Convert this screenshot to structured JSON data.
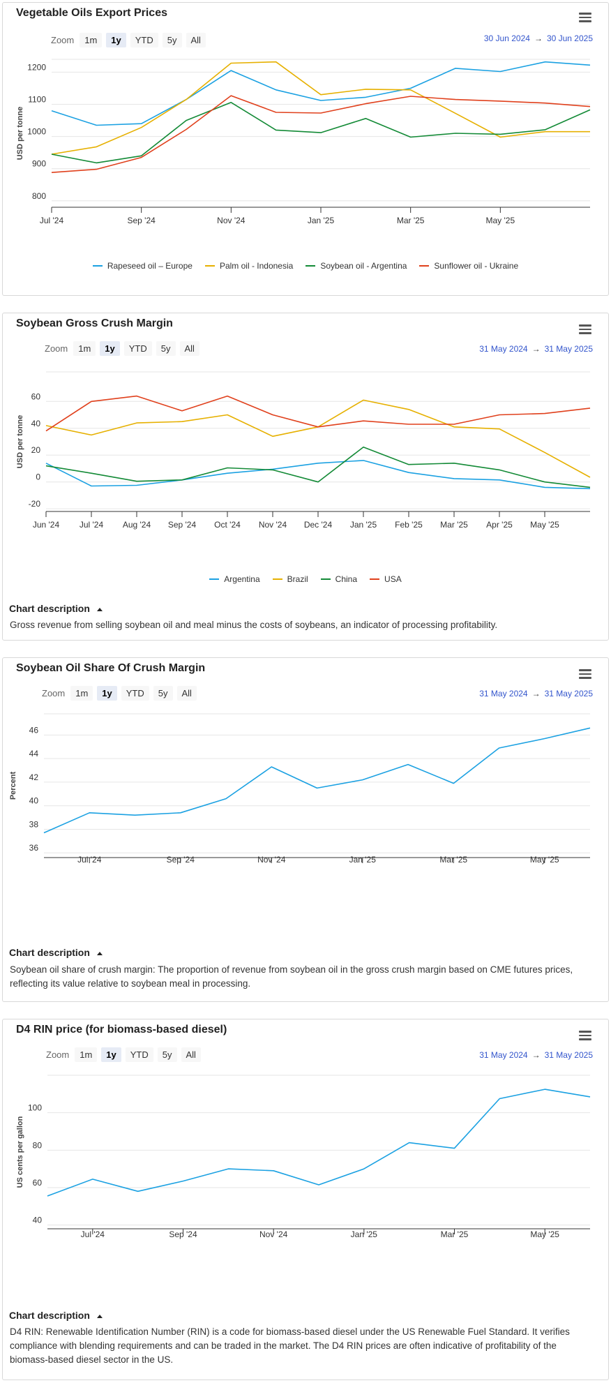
{
  "zoom_label": "Zoom",
  "zoom_options": [
    "1m",
    "1y",
    "YTD",
    "5y",
    "All"
  ],
  "zoom_selected": "1y",
  "range_arrow": "→",
  "chart_data": [
    {
      "type": "line",
      "title": "Vegetable Oils Export Prices",
      "range_from": "30 Jun 2024",
      "range_to": "30 Jun 2025",
      "ylabel": "USD per tonne",
      "xlabel": "",
      "ylim": [
        780,
        1240
      ],
      "yticks": [
        800,
        900,
        1000,
        1100,
        1200
      ],
      "grid": true,
      "legend_position": "bottom",
      "x": [
        "Jul '24",
        "Aug '24",
        "Sep '24",
        "Oct '24",
        "Nov '24",
        "Dec '24",
        "Jan '25",
        "Feb '25",
        "Mar '25",
        "Apr '25",
        "May '25",
        "Jun '25",
        "Jul '25"
      ],
      "xticks": [
        "Jul '24",
        "Sep '24",
        "Nov '24",
        "Jan '25",
        "Mar '25",
        "May '25"
      ],
      "series": [
        {
          "name": "Rapeseed oil – Europe",
          "color": "#1ba1e2",
          "values": [
            1080,
            1035,
            1040,
            1115,
            1205,
            1145,
            1112,
            1122,
            1150,
            1212,
            1202,
            1232,
            1222
          ]
        },
        {
          "name": "Palm oil - Indonesia",
          "color": "#e6b000",
          "values": [
            945,
            968,
            1028,
            1115,
            1228,
            1232,
            1130,
            1147,
            1145,
            1072,
            998,
            1015,
            1015
          ]
        },
        {
          "name": "Soybean oil - Argentina",
          "color": "#138a36",
          "values": [
            945,
            918,
            940,
            1050,
            1106,
            1020,
            1012,
            1056,
            998,
            1010,
            1007,
            1021,
            1083
          ]
        },
        {
          "name": "Sunflower oil - Ukraine",
          "color": "#e0401c",
          "values": [
            888,
            898,
            935,
            1022,
            1127,
            1075,
            1073,
            1102,
            1125,
            1115,
            1110,
            1104,
            1093
          ]
        }
      ]
    },
    {
      "type": "line",
      "title": "Soybean Gross Crush Margin",
      "range_from": "31 May 2024",
      "range_to": "31 May 2025",
      "ylabel": "USD per tonne",
      "xlabel": "",
      "ylim": [
        -22,
        82
      ],
      "yticks": [
        -20,
        0,
        20,
        40,
        60
      ],
      "grid": true,
      "legend_position": "bottom",
      "x": [
        "Jun '24",
        "Jul '24",
        "Aug '24",
        "Sep '24",
        "Oct '24",
        "Nov '24",
        "Dec '24",
        "Jan '25",
        "Feb '25",
        "Mar '25",
        "Apr '25",
        "May '25",
        "Jun '25"
      ],
      "xticks": [
        "Jun '24",
        "Jul '24",
        "Aug '24",
        "Sep '24",
        "Oct '24",
        "Nov '24",
        "Dec '24",
        "Jan '25",
        "Feb '25",
        "Mar '25",
        "Apr '25",
        "May '25"
      ],
      "series": [
        {
          "name": "Argentina",
          "color": "#1ba1e2",
          "values": [
            14,
            -3,
            -2.5,
            1.5,
            6.5,
            9.5,
            14,
            16,
            7,
            2.5,
            1.5,
            -4,
            -5
          ]
        },
        {
          "name": "Brazil",
          "color": "#e6b000",
          "values": [
            42,
            35,
            44,
            45,
            50,
            34,
            41,
            61,
            54,
            41,
            39.5,
            22,
            3.5
          ]
        },
        {
          "name": "China",
          "color": "#138a36",
          "values": [
            12,
            6.5,
            0.5,
            1.5,
            10.5,
            9,
            0,
            26,
            13,
            14,
            9,
            0,
            -4
          ]
        },
        {
          "name": "USA",
          "color": "#e0401c",
          "values": [
            38,
            60,
            64,
            53,
            64,
            50,
            41,
            45.5,
            43,
            43,
            50,
            51,
            55
          ]
        }
      ],
      "description_title": "Chart description",
      "description": "Gross revenue from selling soybean oil and meal minus the costs of soybeans, an indicator of processing profitability."
    },
    {
      "type": "line",
      "title": "Soybean Oil Share Of Crush Margin",
      "range_from": "31 May 2024",
      "range_to": "31 May 2025",
      "ylabel": "Percent",
      "xlabel": "",
      "ylim": [
        35.6,
        47.8
      ],
      "yticks": [
        36,
        38,
        40,
        42,
        44,
        46
      ],
      "grid": true,
      "x": [
        "Jun '24",
        "Jul '24",
        "Aug '24",
        "Sep '24",
        "Oct '24",
        "Nov '24",
        "Dec '24",
        "Jan '25",
        "Feb '25",
        "Mar '25",
        "Apr '25",
        "May '25",
        "Jun '25"
      ],
      "xticks": [
        "Jul '24",
        "Sep '24",
        "Nov '24",
        "Jan '25",
        "Mar '25",
        "May '25"
      ],
      "series": [
        {
          "name": "",
          "color": "#1ba1e2",
          "values": [
            37.7,
            39.4,
            39.2,
            39.4,
            40.6,
            43.3,
            41.5,
            42.2,
            43.5,
            41.9,
            44.9,
            45.7,
            46.6
          ]
        }
      ],
      "description_title": "Chart description",
      "description": "Soybean oil share of crush margin: The proportion of revenue from soybean oil in the gross crush margin based on CME futures prices, reflecting its value relative to soybean meal in processing."
    },
    {
      "type": "line",
      "title": "D4 RIN price (for biomass-based diesel)",
      "range_from": "31 May 2024",
      "range_to": "31 May 2025",
      "ylabel": "US cents per gallon",
      "xlabel": "",
      "ylim": [
        38,
        120
      ],
      "yticks": [
        40,
        60,
        80,
        100
      ],
      "grid": true,
      "x": [
        "Jun '24",
        "Jul '24",
        "Aug '24",
        "Sep '24",
        "Oct '24",
        "Nov '24",
        "Dec '24",
        "Jan '25",
        "Feb '25",
        "Mar '25",
        "Apr '25",
        "May '25",
        "Jun '25"
      ],
      "xticks": [
        "Jul '24",
        "Sep '24",
        "Nov '24",
        "Jan '25",
        "Mar '25",
        "May '25"
      ],
      "series": [
        {
          "name": "",
          "color": "#1ba1e2",
          "values": [
            55.5,
            64.5,
            58,
            63.5,
            70,
            69,
            61.5,
            70,
            84,
            81,
            107.5,
            112.5,
            108.5
          ]
        }
      ],
      "description_title": "Chart description",
      "description": "D4 RIN: Renewable Identification Number (RIN) is a code for biomass-based diesel under the US Renewable Fuel Standard. It verifies compliance with blending requirements and can be traded in the market. The D4 RIN prices are often indicative of profitability of the biomass-based diesel sector in the US."
    }
  ]
}
